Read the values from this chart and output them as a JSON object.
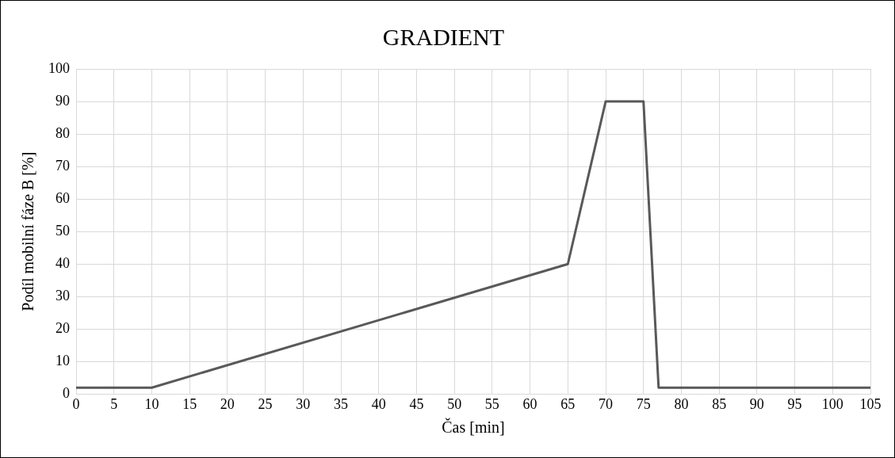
{
  "chart_data": {
    "type": "line",
    "title": "GRADIENT",
    "xlabel": "Čas [min]",
    "ylabel": "Podíl mobilní fáze B [%]",
    "x": [
      0,
      10,
      65,
      70,
      75,
      77,
      105
    ],
    "series": [
      {
        "color": "#595959",
        "values": [
          2,
          2,
          40,
          90,
          90,
          2,
          2
        ]
      }
    ],
    "xlim": [
      0,
      105
    ],
    "xticks": [
      0,
      5,
      10,
      15,
      20,
      25,
      30,
      35,
      40,
      45,
      50,
      55,
      60,
      65,
      70,
      75,
      80,
      85,
      90,
      95,
      100,
      105
    ],
    "ylim": [
      0,
      100
    ],
    "yticks": [
      0,
      10,
      20,
      30,
      40,
      50,
      60,
      70,
      80,
      90,
      100
    ],
    "grid": true,
    "legend": false,
    "marker": "none",
    "line_style": "solid"
  }
}
